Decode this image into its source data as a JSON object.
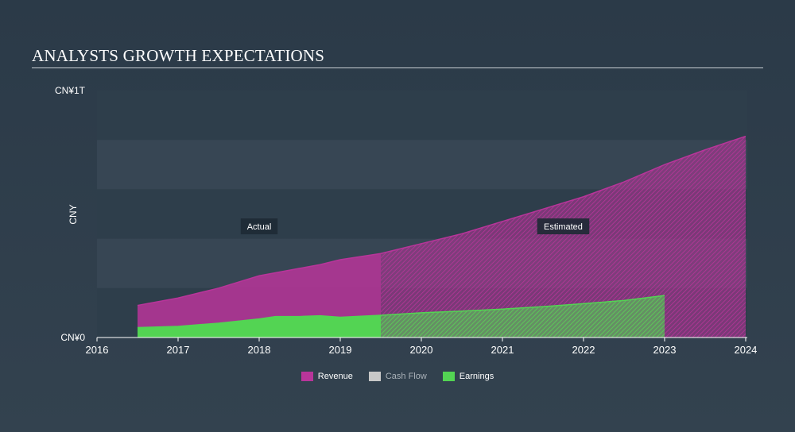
{
  "title": "ANALYSTS GROWTH EXPECTATIONS",
  "chart_data": {
    "type": "area",
    "ylabel": "CNY",
    "ylim": [
      0,
      1
    ],
    "y_ticks": [
      {
        "value": 1,
        "label": "CN¥1T"
      },
      {
        "value": 0,
        "label": "CN¥0"
      }
    ],
    "xlim": [
      2016,
      2024.02
    ],
    "x_ticks": [
      2016,
      2017,
      2018,
      2019,
      2020,
      2021,
      2022,
      2023,
      2024
    ],
    "x_tick_labels": [
      "2016",
      "2017",
      "2018",
      "2019",
      "2020",
      "2021",
      "2022",
      "2023",
      "2024"
    ],
    "actual_end": 2019.5,
    "annotations": [
      {
        "text": "Actual",
        "x": 2018.0,
        "y": 0.45
      },
      {
        "text": "Estimated",
        "x": 2021.75,
        "y": 0.45
      }
    ],
    "grid_bands": true,
    "legend_position": "bottom-center",
    "series": [
      {
        "name": "Revenue",
        "color": "#b8359a",
        "x": [
          2016.5,
          2017.0,
          2017.5,
          2018.0,
          2018.5,
          2018.75,
          2019.0,
          2019.5,
          2020.0,
          2020.5,
          2021.0,
          2021.5,
          2022.0,
          2022.5,
          2023.0,
          2023.5,
          2024.0
        ],
        "values": [
          0.13,
          0.16,
          0.2,
          0.25,
          0.28,
          0.295,
          0.315,
          0.34,
          0.38,
          0.42,
          0.47,
          0.52,
          0.57,
          0.63,
          0.7,
          0.76,
          0.815
        ]
      },
      {
        "name": "Cash Flow",
        "color": "#c8c8c8",
        "x": [],
        "values": []
      },
      {
        "name": "Earnings",
        "color": "#53d453",
        "x": [
          2016.5,
          2017.0,
          2017.5,
          2018.0,
          2018.2,
          2018.5,
          2018.75,
          2019.0,
          2019.5,
          2020.0,
          2020.5,
          2021.0,
          2021.5,
          2022.0,
          2022.5,
          2023.0
        ],
        "values": [
          0.04,
          0.045,
          0.058,
          0.075,
          0.085,
          0.085,
          0.088,
          0.082,
          0.09,
          0.1,
          0.107,
          0.115,
          0.125,
          0.137,
          0.15,
          0.17
        ]
      }
    ]
  }
}
